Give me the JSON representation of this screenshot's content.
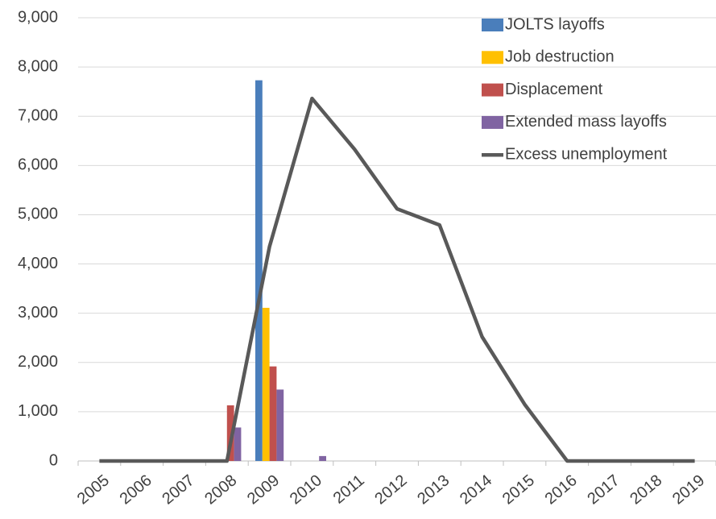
{
  "chart_data": {
    "type": "bar",
    "categories": [
      "2005",
      "2006",
      "2007",
      "2008",
      "2009",
      "2010",
      "2011",
      "2012",
      "2013",
      "2014",
      "2015",
      "2016",
      "2017",
      "2018",
      "2019"
    ],
    "series": [
      {
        "name": "JOLTS layoffs",
        "color": "#4a7ebb",
        "values": [
          null,
          null,
          null,
          null,
          7730,
          null,
          null,
          null,
          null,
          null,
          null,
          null,
          null,
          null,
          null
        ]
      },
      {
        "name": "Job destruction",
        "color": "#ffc000",
        "values": [
          null,
          null,
          null,
          null,
          3110,
          null,
          null,
          null,
          null,
          null,
          null,
          null,
          null,
          null,
          null
        ]
      },
      {
        "name": "Displacement",
        "color": "#c0504d",
        "values": [
          null,
          null,
          null,
          1130,
          1920,
          null,
          null,
          null,
          null,
          null,
          null,
          null,
          null,
          null,
          null
        ]
      },
      {
        "name": "Extended mass layoffs",
        "color": "#8064a2",
        "values": [
          null,
          null,
          null,
          680,
          1450,
          100,
          null,
          null,
          null,
          null,
          null,
          null,
          null,
          null,
          null
        ]
      },
      {
        "name": "Excess unemployment",
        "color": "#595959",
        "type": "line",
        "values": [
          0,
          0,
          0,
          0,
          4350,
          7360,
          6330,
          5120,
          4790,
          2520,
          1150,
          0,
          0,
          0,
          0
        ]
      }
    ],
    "ylim": [
      0,
      9000
    ],
    "yticks": [
      0,
      {
        "value": 1000,
        "label": "1,000"
      },
      {
        "value": 2000,
        "label": "2,000"
      },
      {
        "value": 3000,
        "label": "3,000"
      },
      {
        "value": 4000,
        "label": "4,000"
      },
      {
        "value": 5000,
        "label": "5,000"
      },
      {
        "value": 6000,
        "label": "6,000"
      },
      {
        "value": 7000,
        "label": "7,000"
      },
      {
        "value": 8000,
        "label": "8,000"
      },
      {
        "value": 9000,
        "label": "9,000"
      }
    ],
    "grid": true,
    "legend": "top-right"
  }
}
